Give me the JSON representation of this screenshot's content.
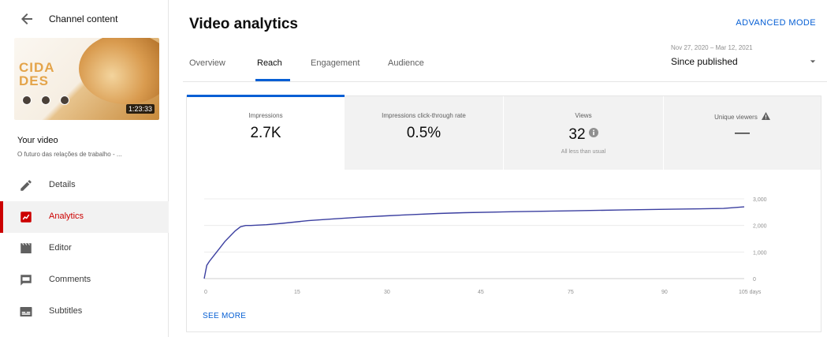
{
  "sidebar": {
    "title": "Channel content",
    "thumbnail": {
      "words": [
        "CIDA",
        "DES"
      ],
      "duration": "1:23:33"
    },
    "your_video_label": "Your video",
    "video_title": "O futuro das relações de trabalho - ...",
    "items": [
      {
        "label": "Details",
        "icon": "pencil-icon"
      },
      {
        "label": "Analytics",
        "icon": "analytics-icon",
        "active": true
      },
      {
        "label": "Editor",
        "icon": "clapperboard-icon"
      },
      {
        "label": "Comments",
        "icon": "comment-icon"
      },
      {
        "label": "Subtitles",
        "icon": "subtitles-icon"
      }
    ]
  },
  "header": {
    "title": "Video analytics",
    "advanced_mode": "ADVANCED MODE"
  },
  "tabs": [
    {
      "label": "Overview"
    },
    {
      "label": "Reach",
      "active": true
    },
    {
      "label": "Engagement"
    },
    {
      "label": "Audience"
    }
  ],
  "date_picker": {
    "range": "Nov 27, 2020 – Mar 12, 2021",
    "label": "Since published"
  },
  "metrics": [
    {
      "label": "Impressions",
      "value": "2.7K",
      "note": ""
    },
    {
      "label": "Impressions click-through rate",
      "value": "0.5%",
      "note": ""
    },
    {
      "label": "Views",
      "value": "32",
      "note": "All less than usual"
    },
    {
      "label": "Unique viewers",
      "value": "—",
      "note": ""
    }
  ],
  "chart_data": {
    "type": "line",
    "title": "",
    "xlabel": "",
    "ylabel": "",
    "x_ticks": [
      "0",
      "15",
      "30",
      "45",
      "75",
      "90",
      "105 days"
    ],
    "y_ticks": [
      "0",
      "1,000",
      "2,000",
      "3,000"
    ],
    "ylim": [
      0,
      3000
    ],
    "series": [
      {
        "x": [
          0,
          0.5,
          1,
          2,
          3,
          4,
          5,
          6,
          7,
          8,
          9,
          12,
          15,
          20,
          25,
          30,
          35,
          40,
          45,
          50,
          60,
          70,
          80,
          90,
          100,
          104
        ],
        "y": [
          0,
          500,
          650,
          900,
          1150,
          1400,
          1600,
          1800,
          1950,
          2000,
          2000,
          2030,
          2080,
          2180,
          2250,
          2310,
          2360,
          2410,
          2450,
          2480,
          2520,
          2550,
          2580,
          2610,
          2640,
          2700
        ]
      }
    ],
    "line_color": "#3b3fa0",
    "grid": true
  },
  "see_more": "SEE MORE"
}
